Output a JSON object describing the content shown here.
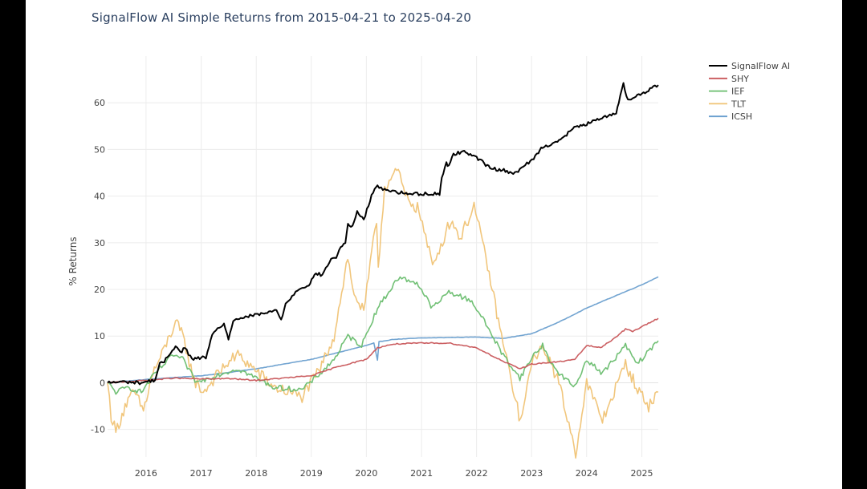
{
  "chart_data": {
    "type": "line",
    "title": "SignalFlow AI Simple Returns from 2015-04-21 to 2025-04-20",
    "xlabel": "",
    "ylabel": "% Returns",
    "xlim": [
      "2015-04-21",
      "2025-04-20"
    ],
    "ylim": [
      -15.9,
      70
    ],
    "x_ticks": [
      "2016",
      "2017",
      "2018",
      "2019",
      "2020",
      "2021",
      "2022",
      "2023",
      "2024",
      "2025"
    ],
    "y_ticks": [
      -10,
      0,
      10,
      20,
      30,
      40,
      50,
      60
    ],
    "grid": true,
    "legend_position": "top-right",
    "series": [
      {
        "name": "SignalFlow AI",
        "color": "#000000",
        "points": [
          [
            "2015-04-21",
            0
          ],
          [
            "2015-08-01",
            0.2
          ],
          [
            "2015-12-01",
            0
          ],
          [
            "2016-03-01",
            0.6
          ],
          [
            "2016-04-01",
            4.0
          ],
          [
            "2016-05-01",
            4.5
          ],
          [
            "2016-06-01",
            6.0
          ],
          [
            "2016-07-15",
            8.0
          ],
          [
            "2016-08-15",
            6.5
          ],
          [
            "2016-09-15",
            7.5
          ],
          [
            "2016-11-01",
            5.0
          ],
          [
            "2017-02-01",
            5.5
          ],
          [
            "2017-03-15",
            10.0
          ],
          [
            "2017-05-01",
            12.0
          ],
          [
            "2017-06-01",
            12.5
          ],
          [
            "2017-07-01",
            9.5
          ],
          [
            "2017-08-01",
            13.0
          ],
          [
            "2017-10-01",
            14.0
          ],
          [
            "2018-01-01",
            14.5
          ],
          [
            "2018-03-15",
            15.0
          ],
          [
            "2018-05-15",
            15.5
          ],
          [
            "2018-06-15",
            13.5
          ],
          [
            "2018-07-15",
            17.0
          ],
          [
            "2018-08-15",
            18.0
          ],
          [
            "2018-10-01",
            20.0
          ],
          [
            "2018-12-15",
            21.0
          ],
          [
            "2019-02-01",
            23.5
          ],
          [
            "2019-03-15",
            23.0
          ],
          [
            "2019-05-01",
            26.0
          ],
          [
            "2019-06-15",
            27.0
          ],
          [
            "2019-07-15",
            29.0
          ],
          [
            "2019-08-15",
            30.0
          ],
          [
            "2019-09-01",
            34.0
          ],
          [
            "2019-10-01",
            33.5
          ],
          [
            "2019-11-01",
            36.5
          ],
          [
            "2019-12-15",
            35.0
          ],
          [
            "2020-02-15",
            41.0
          ],
          [
            "2020-03-15",
            42.0
          ],
          [
            "2020-05-01",
            41.5
          ],
          [
            "2020-07-01",
            41.0
          ],
          [
            "2020-10-01",
            40.5
          ],
          [
            "2021-05-01",
            40.5
          ],
          [
            "2021-05-15",
            44.0
          ],
          [
            "2021-06-15",
            47.0
          ],
          [
            "2021-07-01",
            46.5
          ],
          [
            "2021-08-01",
            49.0
          ],
          [
            "2021-10-01",
            49.5
          ],
          [
            "2021-12-01",
            49.0
          ],
          [
            "2022-02-01",
            47.5
          ],
          [
            "2022-04-01",
            46.0
          ],
          [
            "2022-07-01",
            45.5
          ],
          [
            "2022-09-01",
            45.0
          ],
          [
            "2022-10-15",
            45.5
          ],
          [
            "2022-12-01",
            47.0
          ],
          [
            "2023-01-15",
            48.0
          ],
          [
            "2023-02-15",
            49.5
          ],
          [
            "2023-03-15",
            50.5
          ],
          [
            "2023-06-01",
            51.5
          ],
          [
            "2023-08-01",
            52.5
          ],
          [
            "2023-10-01",
            54.5
          ],
          [
            "2024-01-01",
            55.5
          ],
          [
            "2024-04-01",
            56.5
          ],
          [
            "2024-07-15",
            58.0
          ],
          [
            "2024-08-01",
            60.0
          ],
          [
            "2024-09-01",
            64.0
          ],
          [
            "2024-10-01",
            60.5
          ],
          [
            "2024-11-01",
            61.0
          ],
          [
            "2025-01-01",
            62.0
          ],
          [
            "2025-04-20",
            63.8
          ]
        ]
      },
      {
        "name": "SHY",
        "color": "#c8565a",
        "points": [
          [
            "2015-04-21",
            0
          ],
          [
            "2016-01-01",
            0.5
          ],
          [
            "2016-07-01",
            1.0
          ],
          [
            "2017-01-01",
            0.8
          ],
          [
            "2017-07-01",
            0.9
          ],
          [
            "2018-01-01",
            0.5
          ],
          [
            "2018-07-01",
            1.0
          ],
          [
            "2019-01-01",
            1.5
          ],
          [
            "2019-07-01",
            3.5
          ],
          [
            "2020-01-01",
            5.0
          ],
          [
            "2020-03-15",
            7.5
          ],
          [
            "2020-07-01",
            8.3
          ],
          [
            "2021-01-01",
            8.5
          ],
          [
            "2021-07-01",
            8.5
          ],
          [
            "2022-01-01",
            7.5
          ],
          [
            "2022-07-01",
            4.5
          ],
          [
            "2022-10-15",
            3.0
          ],
          [
            "2023-01-01",
            4.0
          ],
          [
            "2023-07-01",
            4.5
          ],
          [
            "2023-10-15",
            5.0
          ],
          [
            "2024-01-01",
            8.0
          ],
          [
            "2024-04-01",
            7.5
          ],
          [
            "2024-07-01",
            9.5
          ],
          [
            "2024-09-15",
            11.5
          ],
          [
            "2024-11-01",
            11.0
          ],
          [
            "2025-01-01",
            12.0
          ],
          [
            "2025-04-20",
            13.8
          ]
        ]
      },
      {
        "name": "IEF",
        "color": "#69bd6e",
        "points": [
          [
            "2015-04-21",
            0
          ],
          [
            "2015-06-15",
            -2.0
          ],
          [
            "2015-09-01",
            -1.0
          ],
          [
            "2015-12-01",
            -2.0
          ],
          [
            "2016-03-01",
            2.0
          ],
          [
            "2016-07-01",
            6.0
          ],
          [
            "2016-09-01",
            5.0
          ],
          [
            "2016-12-01",
            0
          ],
          [
            "2017-04-01",
            1.5
          ],
          [
            "2017-09-01",
            3.0
          ],
          [
            "2017-12-01",
            1.5
          ],
          [
            "2018-05-01",
            -1.0
          ],
          [
            "2018-11-01",
            -1.5
          ],
          [
            "2019-03-01",
            2.0
          ],
          [
            "2019-06-01",
            5.0
          ],
          [
            "2019-09-01",
            10.0
          ],
          [
            "2019-12-01",
            8.0
          ],
          [
            "2020-03-15",
            16.0
          ],
          [
            "2020-08-01",
            22.5
          ],
          [
            "2020-12-01",
            21.5
          ],
          [
            "2021-03-15",
            16.0
          ],
          [
            "2021-07-01",
            19.5
          ],
          [
            "2021-12-01",
            17.5
          ],
          [
            "2022-03-15",
            12.0
          ],
          [
            "2022-06-15",
            6.5
          ],
          [
            "2022-10-15",
            1.0
          ],
          [
            "2023-01-15",
            6.0
          ],
          [
            "2023-03-15",
            8.0
          ],
          [
            "2023-06-01",
            3.0
          ],
          [
            "2023-10-15",
            -1.0
          ],
          [
            "2024-01-01",
            5.0
          ],
          [
            "2024-04-15",
            2.0
          ],
          [
            "2024-09-15",
            8.0
          ],
          [
            "2024-12-01",
            4.0
          ],
          [
            "2025-04-20",
            9.0
          ]
        ]
      },
      {
        "name": "TLT",
        "color": "#f0c375",
        "points": [
          [
            "2015-04-21",
            0
          ],
          [
            "2015-05-15",
            -7.0
          ],
          [
            "2015-06-15",
            -10.5
          ],
          [
            "2015-08-15",
            -5.0
          ],
          [
            "2015-10-15",
            -2.0
          ],
          [
            "2015-12-15",
            -6.0
          ],
          [
            "2016-02-15",
            2.0
          ],
          [
            "2016-04-15",
            6.0
          ],
          [
            "2016-07-15",
            13.0
          ],
          [
            "2016-09-01",
            10.0
          ],
          [
            "2016-11-15",
            0.5
          ],
          [
            "2017-01-15",
            -2.0
          ],
          [
            "2017-06-15",
            4.0
          ],
          [
            "2017-09-01",
            6.0
          ],
          [
            "2017-12-15",
            3.0
          ],
          [
            "2018-05-01",
            -1.0
          ],
          [
            "2018-11-01",
            -3.0
          ],
          [
            "2019-03-01",
            3.0
          ],
          [
            "2019-06-01",
            10.0
          ],
          [
            "2019-08-31",
            27.0
          ],
          [
            "2019-10-01",
            20.0
          ],
          [
            "2019-12-15",
            15.0
          ],
          [
            "2020-03-09",
            35.0
          ],
          [
            "2020-03-20",
            25.0
          ],
          [
            "2020-05-01",
            42.0
          ],
          [
            "2020-07-31",
            45.5
          ],
          [
            "2020-09-15",
            40.0
          ],
          [
            "2020-12-15",
            37.0
          ],
          [
            "2021-03-15",
            25.0
          ],
          [
            "2021-07-15",
            35.0
          ],
          [
            "2021-09-15",
            31.0
          ],
          [
            "2021-12-15",
            38.0
          ],
          [
            "2022-03-15",
            25.0
          ],
          [
            "2022-06-15",
            10.0
          ],
          [
            "2022-10-20",
            -8.5
          ],
          [
            "2023-01-15",
            6.0
          ],
          [
            "2023-04-01",
            7.0
          ],
          [
            "2023-07-01",
            0
          ],
          [
            "2023-10-20",
            -15.0
          ],
          [
            "2024-01-01",
            0
          ],
          [
            "2024-04-15",
            -8.0
          ],
          [
            "2024-09-15",
            4.0
          ],
          [
            "2024-12-15",
            -2.0
          ],
          [
            "2025-02-15",
            -5.0
          ],
          [
            "2025-04-20",
            -2.0
          ]
        ]
      },
      {
        "name": "ICSH",
        "color": "#6a9fcf",
        "points": [
          [
            "2015-04-21",
            0
          ],
          [
            "2016-01-01",
            0.7
          ],
          [
            "2016-07-01",
            1.1
          ],
          [
            "2017-01-01",
            1.5
          ],
          [
            "2017-07-01",
            2.2
          ],
          [
            "2018-01-01",
            3.0
          ],
          [
            "2018-07-01",
            4.0
          ],
          [
            "2019-01-01",
            5.0
          ],
          [
            "2019-07-01",
            6.5
          ],
          [
            "2020-01-01",
            8.0
          ],
          [
            "2020-02-20",
            8.5
          ],
          [
            "2020-03-15",
            4.8
          ],
          [
            "2020-03-25",
            8.8
          ],
          [
            "2020-07-01",
            9.3
          ],
          [
            "2021-01-01",
            9.6
          ],
          [
            "2021-07-01",
            9.7
          ],
          [
            "2022-01-01",
            9.8
          ],
          [
            "2022-07-01",
            9.5
          ],
          [
            "2023-01-01",
            10.5
          ],
          [
            "2023-07-01",
            13.0
          ],
          [
            "2024-01-01",
            16.0
          ],
          [
            "2024-07-01",
            18.5
          ],
          [
            "2025-01-01",
            21.0
          ],
          [
            "2025-04-20",
            22.7
          ]
        ]
      }
    ]
  }
}
